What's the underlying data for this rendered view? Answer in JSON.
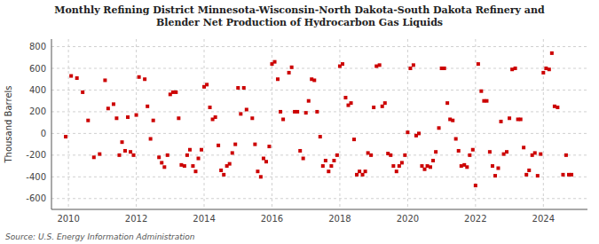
{
  "chart_data": {
    "type": "scatter",
    "title": "Monthly Refining District Minnesota-Wisconsin-North Dakota-South Dakota Refinery and\nBlender Net Production of Hydrocarbon Gas Liquids",
    "ylabel": "Thousand Barrels",
    "annotations": [
      "Source: U.S. Energy Information Administration"
    ],
    "color": "#cc0000",
    "marker": "square",
    "grid": true,
    "ylim": [
      -700,
      870
    ],
    "yticks": [
      -600,
      -400,
      -200,
      0,
      200,
      400,
      600,
      800
    ],
    "xlim": [
      2009.5,
      2025.3
    ],
    "xticks": [
      2010,
      2012,
      2014,
      2016,
      2018,
      2020,
      2022,
      2024
    ],
    "x": [
      2009.92,
      2010.08,
      2010.25,
      2010.42,
      2010.58,
      2010.75,
      2010.92,
      2011.08,
      2011.17,
      2011.33,
      2011.42,
      2011.5,
      2011.58,
      2011.67,
      2011.75,
      2011.83,
      2011.92,
      2012.0,
      2012.08,
      2012.25,
      2012.33,
      2012.42,
      2012.5,
      2012.67,
      2012.75,
      2012.83,
      2012.92,
      2013.0,
      2013.08,
      2013.17,
      2013.25,
      2013.33,
      2013.42,
      2013.5,
      2013.58,
      2013.67,
      2013.75,
      2013.83,
      2013.92,
      2014.0,
      2014.08,
      2014.17,
      2014.25,
      2014.33,
      2014.42,
      2014.5,
      2014.58,
      2014.67,
      2014.75,
      2014.83,
      2014.92,
      2015.0,
      2015.08,
      2015.17,
      2015.25,
      2015.42,
      2015.5,
      2015.58,
      2015.67,
      2015.75,
      2015.83,
      2015.92,
      2016.0,
      2016.08,
      2016.17,
      2016.25,
      2016.33,
      2016.5,
      2016.58,
      2016.67,
      2016.75,
      2016.83,
      2016.92,
      2017.0,
      2017.08,
      2017.17,
      2017.25,
      2017.33,
      2017.42,
      2017.5,
      2017.58,
      2017.67,
      2017.75,
      2017.83,
      2017.92,
      2018.0,
      2018.08,
      2018.17,
      2018.25,
      2018.33,
      2018.42,
      2018.5,
      2018.58,
      2018.67,
      2018.75,
      2018.83,
      2018.92,
      2019.0,
      2019.08,
      2019.17,
      2019.25,
      2019.33,
      2019.42,
      2019.5,
      2019.58,
      2019.67,
      2019.75,
      2019.83,
      2019.92,
      2020.0,
      2020.08,
      2020.17,
      2020.25,
      2020.33,
      2020.42,
      2020.5,
      2020.58,
      2020.67,
      2020.75,
      2020.83,
      2020.92,
      2021.0,
      2021.08,
      2021.17,
      2021.25,
      2021.33,
      2021.42,
      2021.5,
      2021.58,
      2021.67,
      2021.75,
      2021.83,
      2021.92,
      2022.0,
      2022.08,
      2022.17,
      2022.25,
      2022.33,
      2022.42,
      2022.5,
      2022.58,
      2022.67,
      2022.75,
      2022.83,
      2022.92,
      2023.0,
      2023.08,
      2023.17,
      2023.25,
      2023.33,
      2023.42,
      2023.5,
      2023.58,
      2023.67,
      2023.75,
      2023.83,
      2023.92,
      2024.0,
      2024.08,
      2024.17,
      2024.25,
      2024.33,
      2024.42,
      2024.58,
      2024.67,
      2024.75,
      2024.83
    ],
    "y": [
      -30,
      530,
      510,
      380,
      120,
      -220,
      -190,
      490,
      230,
      270,
      140,
      -200,
      -80,
      -160,
      150,
      -170,
      -200,
      170,
      520,
      500,
      250,
      -50,
      120,
      -220,
      -270,
      -310,
      -200,
      360,
      380,
      380,
      140,
      -290,
      -300,
      -200,
      -150,
      -300,
      -350,
      -230,
      -150,
      430,
      450,
      240,
      130,
      150,
      -110,
      -340,
      -380,
      -300,
      -280,
      -180,
      -100,
      420,
      180,
      420,
      220,
      140,
      -100,
      -350,
      -400,
      -230,
      -260,
      -120,
      640,
      660,
      500,
      200,
      130,
      560,
      610,
      200,
      200,
      -160,
      -230,
      190,
      300,
      500,
      490,
      200,
      -30,
      -300,
      -250,
      -350,
      -300,
      -250,
      -200,
      620,
      640,
      330,
      260,
      280,
      -55,
      -380,
      -350,
      -380,
      -350,
      -180,
      -200,
      240,
      620,
      630,
      250,
      280,
      -185,
      -200,
      -300,
      -350,
      -300,
      -270,
      -200,
      10,
      600,
      630,
      -20,
      0,
      -300,
      -330,
      -300,
      -310,
      -250,
      -170,
      50,
      600,
      600,
      280,
      130,
      120,
      -50,
      -160,
      -300,
      -290,
      -310,
      -200,
      -150,
      -480,
      640,
      390,
      300,
      300,
      -170,
      -300,
      -390,
      -320,
      110,
      -190,
      -170,
      140,
      590,
      600,
      130,
      130,
      -130,
      -380,
      -340,
      -200,
      -180,
      -390,
      -190,
      560,
      600,
      590,
      740,
      250,
      240,
      -380,
      -200,
      -380,
      -380
    ]
  }
}
